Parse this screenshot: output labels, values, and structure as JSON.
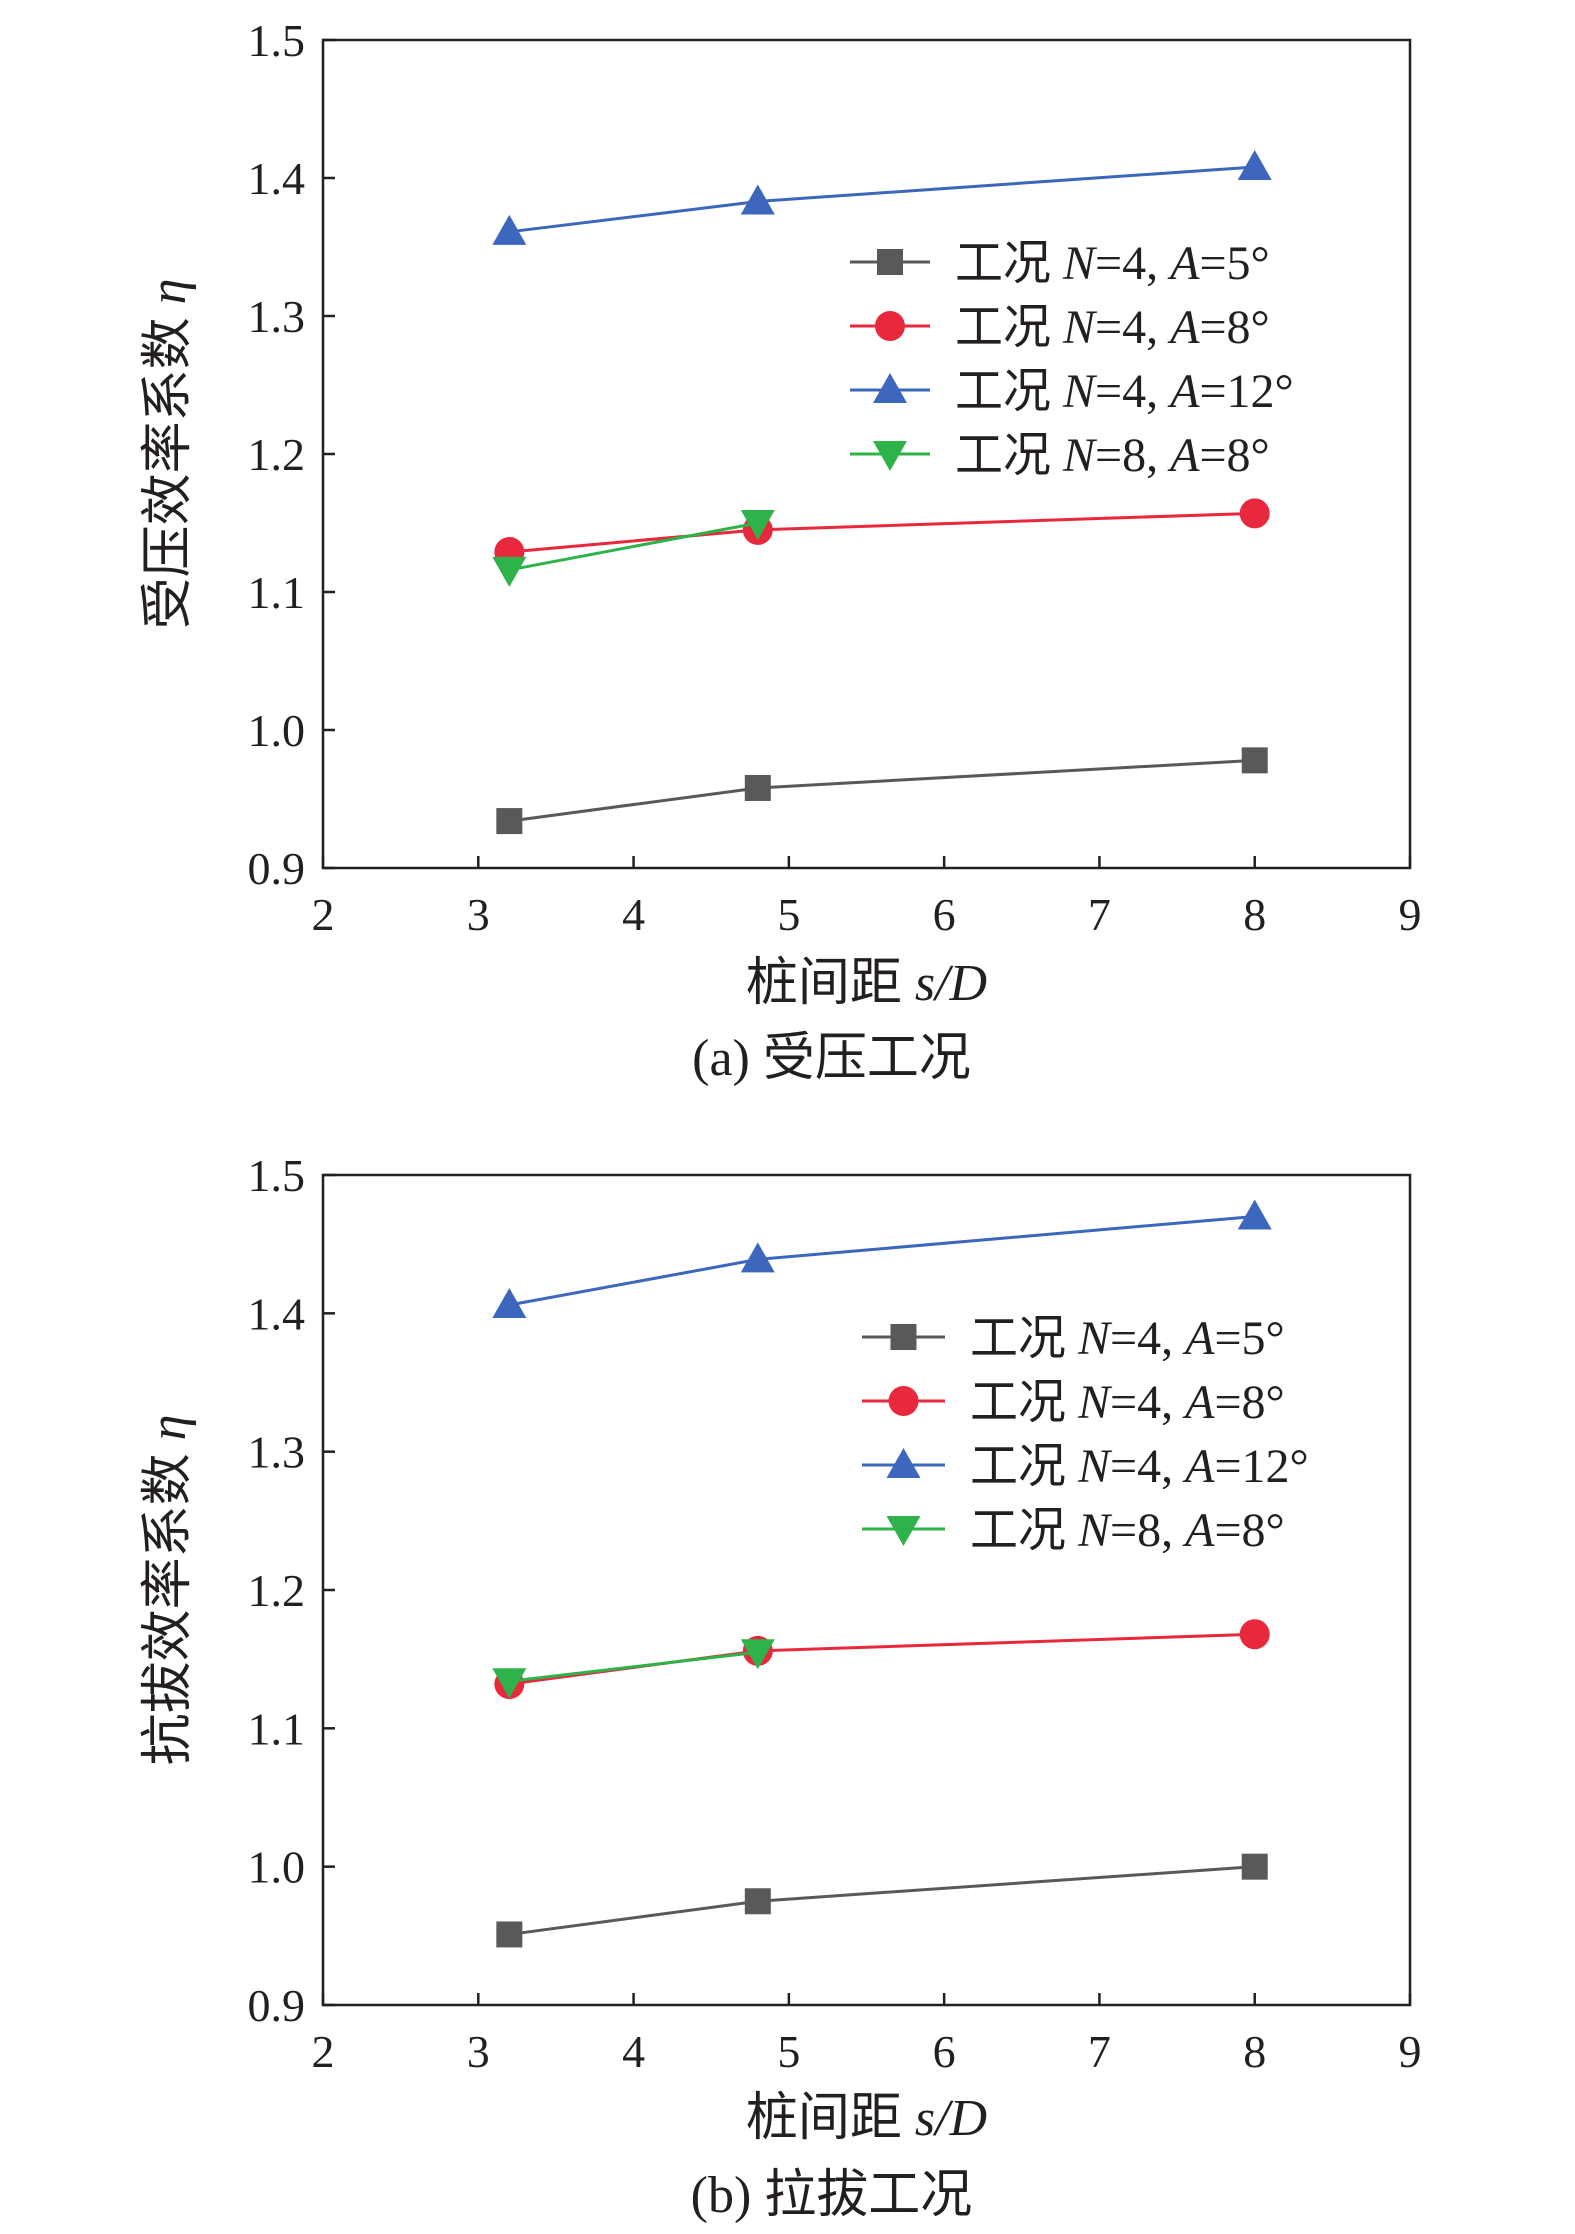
{
  "colors": {
    "axis": "#231f20",
    "series": [
      "#595959",
      "#e8283c",
      "#3d66bd",
      "#2eb24a"
    ],
    "markers": [
      "square",
      "circle",
      "triangle-up",
      "triangle-down"
    ]
  },
  "legend": {
    "prefix": "工况",
    "var_n": "N",
    "var_a": "A",
    "entries": [
      {
        "n_val": "=4, ",
        "a_val": "=5°"
      },
      {
        "n_val": "=4, ",
        "a_val": "=8°"
      },
      {
        "n_val": "=4, ",
        "a_val": "=12°"
      },
      {
        "n_val": "=8, ",
        "a_val": "=8°"
      }
    ]
  },
  "chart_data": [
    {
      "type": "line",
      "caption": "(a) 受压工况",
      "xlabel_text": "桩间距 ",
      "xlabel_var": "s/D",
      "ylabel_text": "受压效率系数 ",
      "ylabel_var": "η",
      "xlim": [
        2,
        9
      ],
      "ylim": [
        0.9,
        1.5
      ],
      "xticks": [
        "2",
        "3",
        "4",
        "5",
        "6",
        "7",
        "8",
        "9"
      ],
      "yticks": [
        "0.9",
        "1.0",
        "1.1",
        "1.2",
        "1.3",
        "1.4",
        "1.5"
      ],
      "legend_position": "upper-right",
      "series": [
        {
          "name": "工况 N=4, A=5°",
          "x": [
            3.2,
            4.8,
            8
          ],
          "y": [
            0.934,
            0.958,
            0.978
          ]
        },
        {
          "name": "工况 N=4, A=8°",
          "x": [
            3.2,
            4.8,
            8
          ],
          "y": [
            1.129,
            1.145,
            1.157
          ]
        },
        {
          "name": "工况 N=4, A=12°",
          "x": [
            3.2,
            4.8,
            8
          ],
          "y": [
            1.361,
            1.383,
            1.408
          ]
        },
        {
          "name": "工况 N=8, A=8°",
          "x": [
            3.2,
            4.8
          ],
          "y": [
            1.116,
            1.15
          ]
        }
      ]
    },
    {
      "type": "line",
      "caption": "(b) 拉拔工况",
      "xlabel_text": "桩间距 ",
      "xlabel_var": "s/D",
      "ylabel_text": "抗拔效率系数 ",
      "ylabel_var": "η",
      "xlim": [
        2,
        9
      ],
      "ylim": [
        0.9,
        1.5
      ],
      "xticks": [
        "2",
        "3",
        "4",
        "5",
        "6",
        "7",
        "8",
        "9"
      ],
      "yticks": [
        "0.9",
        "1.0",
        "1.1",
        "1.2",
        "1.3",
        "1.4",
        "1.5"
      ],
      "legend_position": "upper-right",
      "series": [
        {
          "name": "工况 N=4, A=5°",
          "x": [
            3.2,
            4.8,
            8
          ],
          "y": [
            0.951,
            0.975,
            1.0
          ]
        },
        {
          "name": "工况 N=4, A=8°",
          "x": [
            3.2,
            4.8,
            8
          ],
          "y": [
            1.132,
            1.156,
            1.168
          ]
        },
        {
          "name": "工况 N=4, A=12°",
          "x": [
            3.2,
            4.8,
            8
          ],
          "y": [
            1.406,
            1.439,
            1.47
          ]
        },
        {
          "name": "工况 N=8, A=8°",
          "x": [
            3.2,
            4.8
          ],
          "y": [
            1.134,
            1.155
          ]
        }
      ]
    }
  ]
}
